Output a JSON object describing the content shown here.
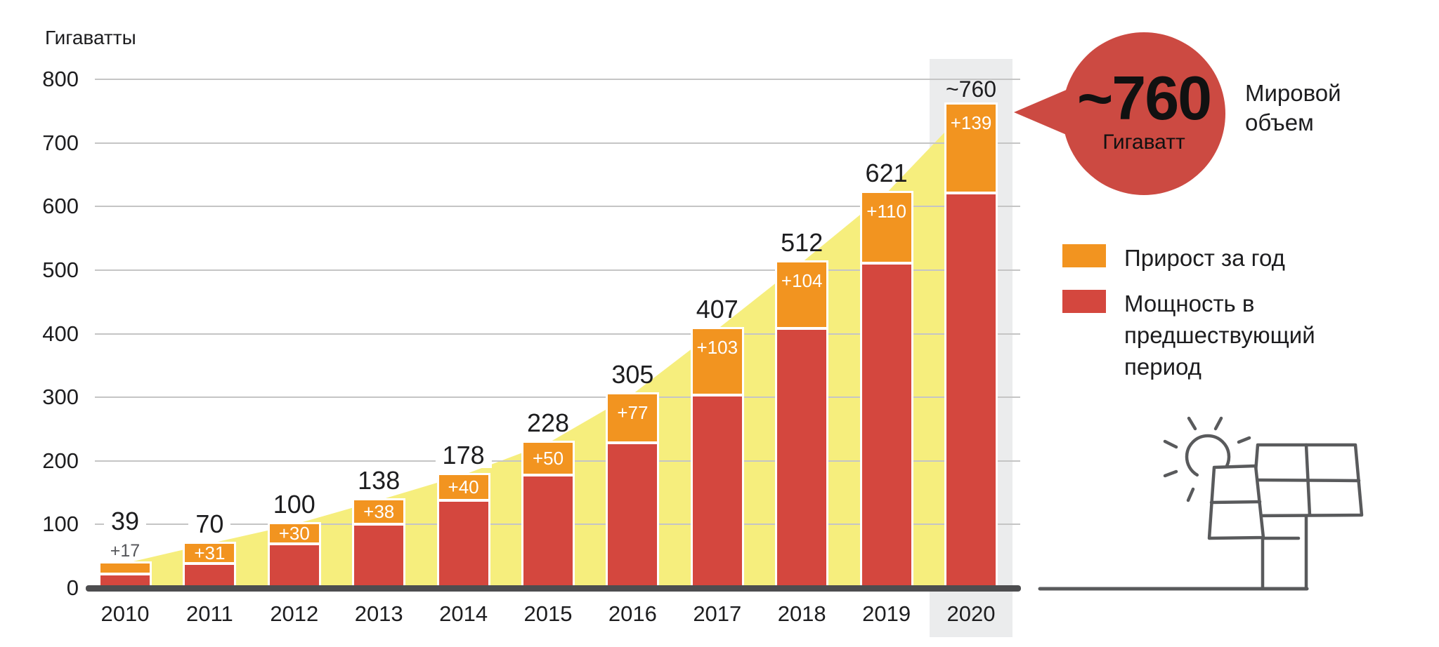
{
  "y_axis": {
    "title": "Гигаватты"
  },
  "callout": {
    "value": "~760",
    "unit": "Гигаватт",
    "label": "Мировой объем",
    "color": "#cc4a42"
  },
  "legend": {
    "items": [
      {
        "label": "Прирост за год",
        "color": "#f29420",
        "swatch_icon": "orange-square-icon"
      },
      {
        "label": "Мощность в предшествующий период",
        "color": "#d4473e",
        "swatch_icon": "red-square-icon"
      }
    ]
  },
  "icon": {
    "name": "solar-panels-sun-icon"
  },
  "chart_data": {
    "type": "bar",
    "stacked": true,
    "title": "Гигаватты",
    "categories": [
      "2010",
      "2011",
      "2012",
      "2013",
      "2014",
      "2015",
      "2016",
      "2017",
      "2018",
      "2019",
      "2020"
    ],
    "series": [
      {
        "name": "Мощность в предшествующий период",
        "color": "#d4473e",
        "values": [
          22,
          39,
          70,
          100,
          138,
          178,
          228,
          304,
          408,
          511,
          621
        ]
      },
      {
        "name": "Прирост за год",
        "color": "#f29420",
        "values": [
          17,
          31,
          30,
          38,
          40,
          50,
          77,
          103,
          104,
          110,
          139
        ]
      }
    ],
    "totals": [
      39,
      70,
      100,
      138,
      178,
      228,
      305,
      407,
      512,
      621,
      760
    ],
    "total_labels": [
      "39",
      "70",
      "100",
      "138",
      "178",
      "228",
      "305",
      "407",
      "512",
      "621",
      "~760"
    ],
    "growth_labels": [
      "+17",
      "+31",
      "+30",
      "+38",
      "+40",
      "+50",
      "+77",
      "+103",
      "+104",
      "+110",
      "+139"
    ],
    "y_ticks": [
      800,
      700,
      600,
      500,
      400,
      300,
      200,
      100,
      0
    ],
    "ylim": [
      0,
      800
    ],
    "grid": true,
    "legend_position": "right",
    "area_color": "#f6ee7d",
    "highlighted_category": "2020",
    "highlight_color": "#ebeced"
  }
}
